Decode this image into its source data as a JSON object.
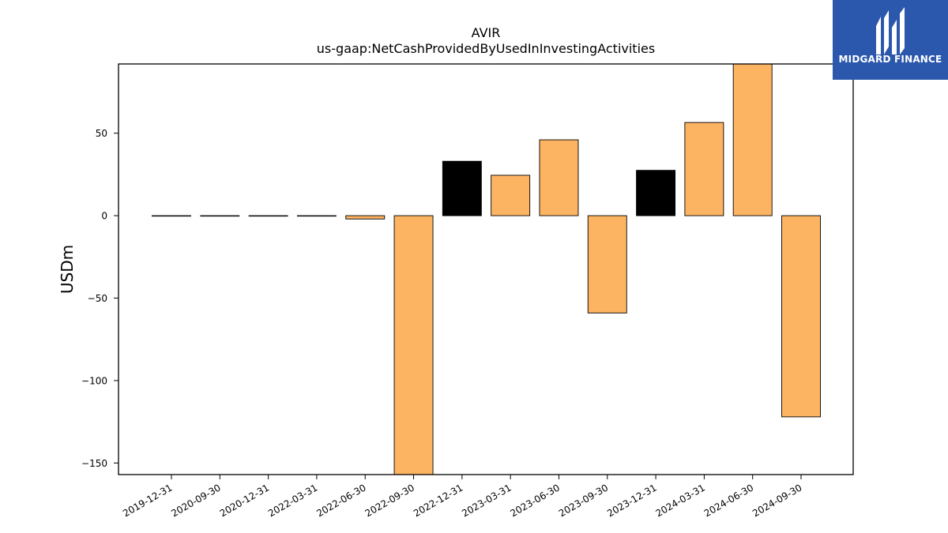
{
  "chart_data": {
    "type": "bar",
    "title": "AVIR",
    "subtitle": "us-gaap:NetCashProvidedByUsedInInvestingActivities",
    "xlabel": "",
    "ylabel": "USDm",
    "categories": [
      "2019-12-31",
      "2020-09-30",
      "2020-12-31",
      "2022-03-31",
      "2022-06-30",
      "2022-09-30",
      "2022-12-31",
      "2023-03-31",
      "2023-06-30",
      "2023-09-30",
      "2023-12-31",
      "2024-03-31",
      "2024-06-30",
      "2024-09-30"
    ],
    "values": [
      0,
      0,
      0,
      0,
      -2,
      -157,
      33,
      24.5,
      46,
      -59,
      27.5,
      56.5,
      92,
      -122
    ],
    "bar_colors": [
      "#fdb462",
      "#fdb462",
      "#fdb462",
      "#fdb462",
      "#fdb462",
      "#fdb462",
      "#000000",
      "#fdb462",
      "#fdb462",
      "#fdb462",
      "#000000",
      "#fdb462",
      "#fdb462",
      "#fdb462"
    ],
    "ylim": [
      -157,
      92
    ],
    "yticks": [
      50,
      0,
      -50,
      -100,
      -150
    ],
    "ytick_labels": [
      "50",
      "0",
      "−50",
      "−100",
      "−150"
    ],
    "grid": false,
    "legend": "none"
  },
  "logo": {
    "text": "MIDGARD FINANCE",
    "icon": "midgard-m-logo-icon",
    "background": "#2b58ac"
  }
}
